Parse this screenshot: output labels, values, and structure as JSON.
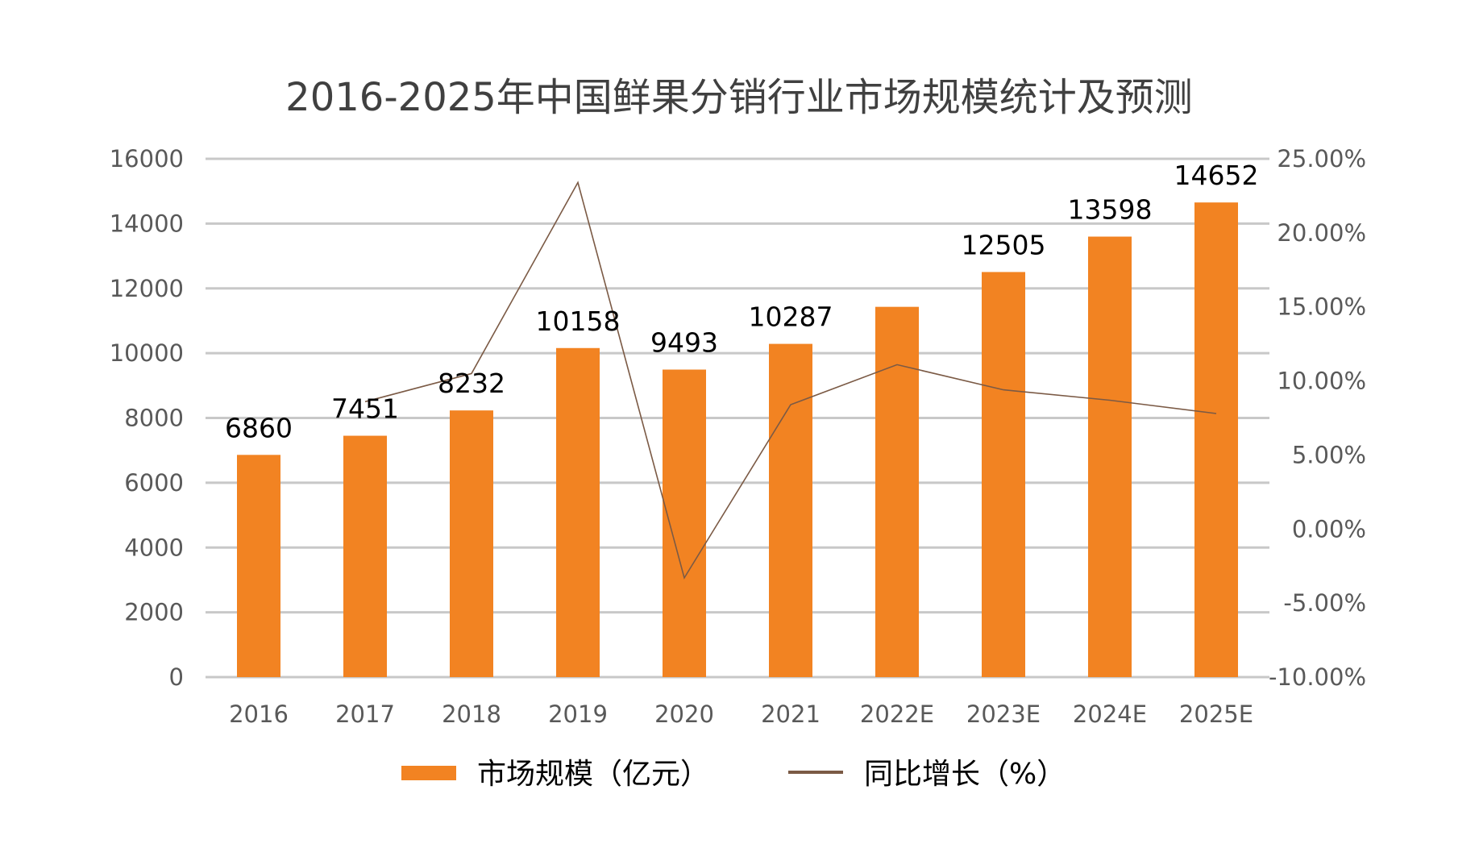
{
  "chart_data": {
    "type": "bar",
    "title": "2016-2025年中国鲜果分销行业市场规模统计及预测",
    "categories": [
      "2016",
      "2017",
      "2018",
      "2019",
      "2020",
      "2021",
      "2022E",
      "2023E",
      "2024E",
      "2025E"
    ],
    "series": [
      {
        "name": "市场规模（亿元）",
        "type": "bar",
        "axis": "left",
        "color": "#f28322",
        "values": [
          6860,
          7451,
          8232,
          10158,
          9493,
          10287,
          11430,
          12505,
          13598,
          14652
        ],
        "data_labels": [
          "6860",
          "7451",
          "8232",
          "10158",
          "9493",
          "10287",
          "",
          "12505",
          "13598",
          "14652"
        ]
      },
      {
        "name": "同比增长（%）",
        "type": "line",
        "axis": "right",
        "color": "#7b5a45",
        "values": [
          null,
          8.6,
          10.5,
          23.4,
          -3.3,
          8.4,
          11.1,
          9.4,
          8.7,
          7.8
        ]
      }
    ],
    "y_left": {
      "min": 0,
      "max": 16000,
      "ticks": [
        0,
        2000,
        4000,
        6000,
        8000,
        10000,
        12000,
        14000,
        16000
      ],
      "tick_labels": [
        "0",
        "2000",
        "4000",
        "6000",
        "8000",
        "10000",
        "12000",
        "14000",
        "16000"
      ]
    },
    "y_right": {
      "min": -10,
      "max": 25,
      "ticks": [
        -10,
        -5,
        0,
        5,
        10,
        15,
        20,
        25
      ],
      "tick_labels": [
        "-10.00%",
        "-5.00%",
        "0.00%",
        "5.00%",
        "10.00%",
        "15.00%",
        "20.00%",
        "25.00%"
      ]
    },
    "grid": true,
    "legend_position": "bottom"
  }
}
